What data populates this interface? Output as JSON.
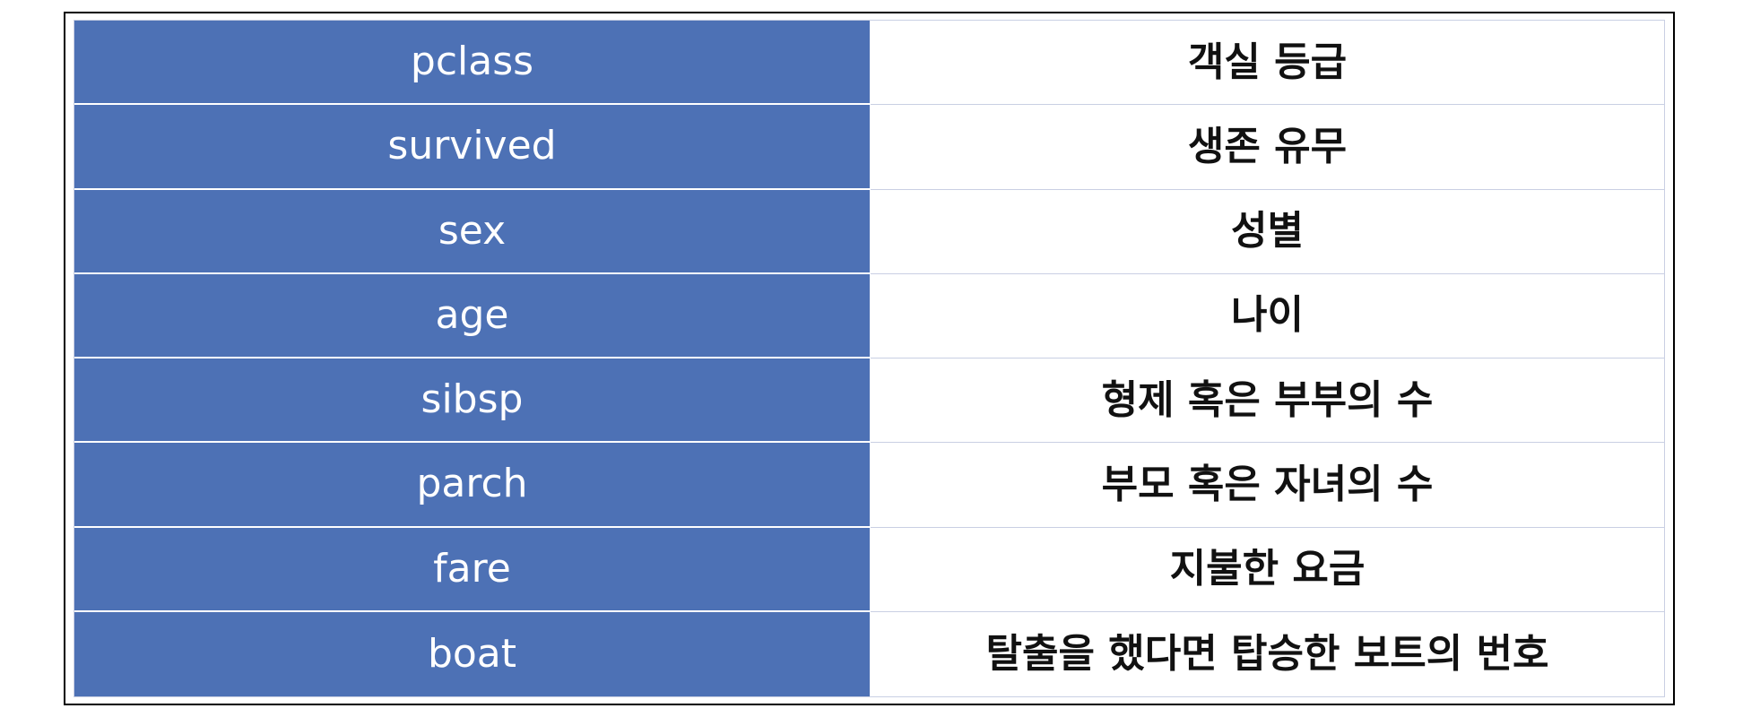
{
  "table": {
    "rows": [
      {
        "field": "pclass",
        "description": "객실 등급"
      },
      {
        "field": "survived",
        "description": "생존 유무"
      },
      {
        "field": "sex",
        "description": "성별"
      },
      {
        "field": "age",
        "description": "나이"
      },
      {
        "field": "sibsp",
        "description": "형제 혹은 부부의 수"
      },
      {
        "field": "parch",
        "description": "부모 혹은 자녀의 수"
      },
      {
        "field": "fare",
        "description": "지불한 요금"
      },
      {
        "field": "boat",
        "description": "탈출을 했다면 탑승한 보트의 번호"
      }
    ]
  },
  "colors": {
    "header_column_bg": "#4d71b5",
    "header_column_text": "#ffffff",
    "value_text": "#111111",
    "frame_border": "#000000"
  }
}
